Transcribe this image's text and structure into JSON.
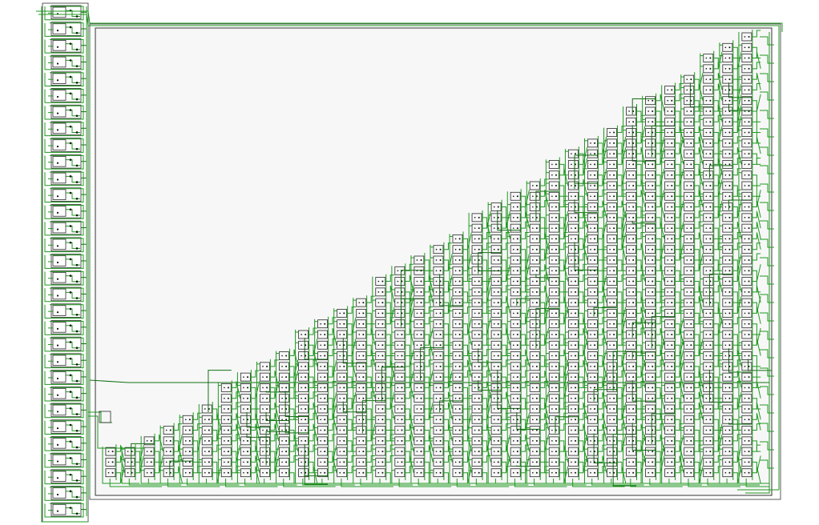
{
  "diagram": {
    "kind": "netlist-schematic",
    "colors": {
      "background": "#ffffff",
      "panel": "#f7f7f7",
      "wire": "#1f9a1f",
      "wire_dark": "#137013",
      "cell_outline": "#2a2a2a",
      "pin": "#111111"
    },
    "left_column": {
      "cell_count": 31
    },
    "triangle_array": {
      "column_count": 34,
      "rows_tallest_column": 42
    }
  }
}
